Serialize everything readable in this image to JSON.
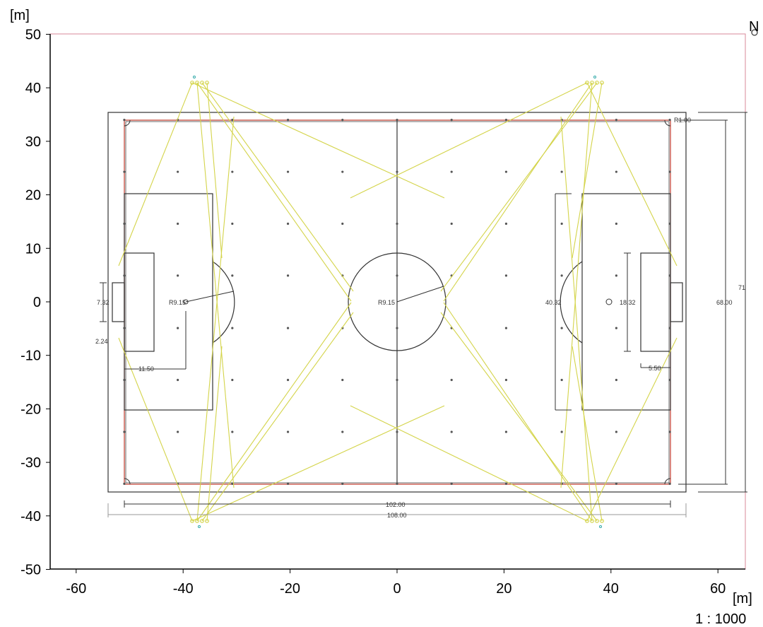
{
  "drawing": {
    "y_unit": "[m]",
    "x_unit": "[m]",
    "north": "N",
    "scale": "1 : 1000",
    "x_ticks": [
      "-60",
      "-40",
      "-20",
      "0",
      "20",
      "40",
      "60"
    ],
    "y_ticks": [
      "50",
      "40",
      "30",
      "20",
      "10",
      "0",
      "-10",
      "-20",
      "-30",
      "-40",
      "-50"
    ]
  },
  "dimensions": {
    "corner_radius": "R1.00",
    "center_radius": "R9.15",
    "penalty_arc_radius": "R9.15",
    "goal_width": "7.32",
    "goal_area_offset": "2.24",
    "penalty_spot_distance": "11.50",
    "penalty_area_width": "40.32",
    "goal_area_width": "18.32",
    "goal_area_depth": "5.50",
    "pitch_width": "68.00",
    "outer_width": "71",
    "pitch_length": "102.00",
    "outer_length": "108.00"
  },
  "colors": {
    "pitch_outline": "#c0392b",
    "light_beams": "#d4d44a",
    "lines": "#333333",
    "axis": "#000000"
  }
}
